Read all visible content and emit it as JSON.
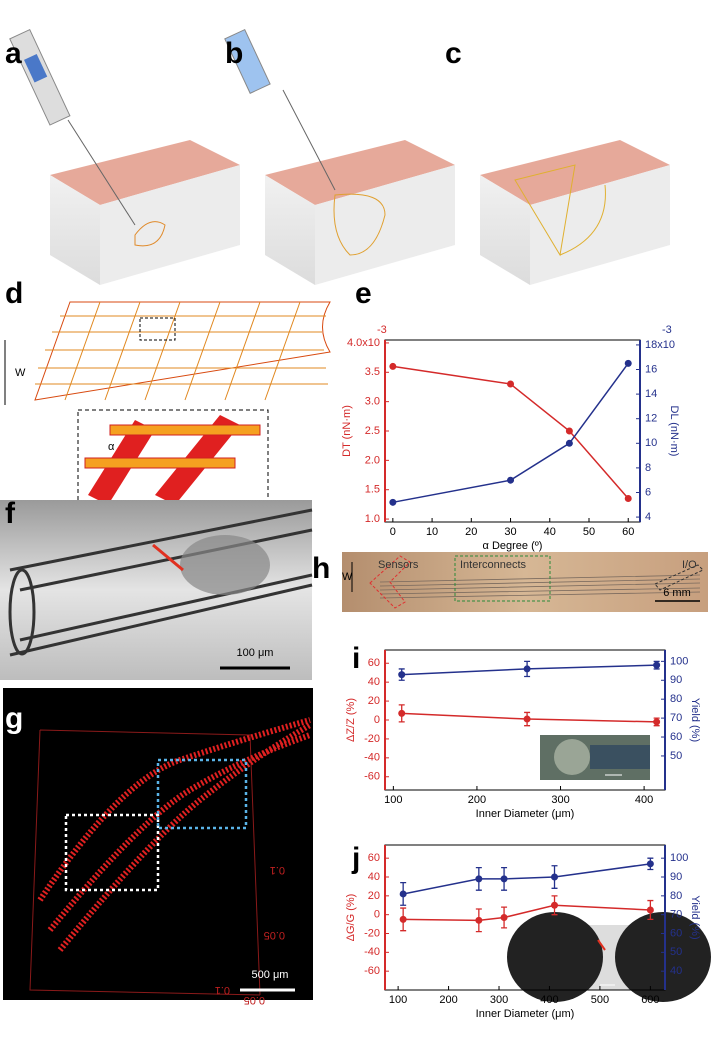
{
  "panel_labels": [
    "a",
    "b",
    "c",
    "d",
    "e",
    "f",
    "g",
    "h",
    "i",
    "j"
  ],
  "annotations": {
    "d_width": "W",
    "d_angle": "α",
    "f_scale": "100 μm",
    "g_scale": "500 μm",
    "g_axis_labels": [
      "0.1",
      "0.05",
      "0.1",
      "0.05"
    ],
    "h_width": "W",
    "h_sensors": "Sensors",
    "h_interconnects": "Interconnects",
    "h_io": "I/O",
    "h_scale": "6 mm"
  },
  "chart_data": [
    {
      "type": "line",
      "x_label": "α Degree (º)",
      "y_label": "DT (nN·m)",
      "y2_label": "DL (nN·m)",
      "y_exponent": "-3",
      "y2_exponent": "-3",
      "x": [
        0,
        30,
        45,
        60
      ],
      "xlim": [
        -2,
        63
      ],
      "xticks": [
        0,
        10,
        20,
        30,
        40,
        50,
        60
      ],
      "ylim": [
        0.95,
        4.05
      ],
      "yticks": [
        {
          "value": 1.0,
          "label": "1.0"
        },
        {
          "value": 1.5,
          "label": "1.5"
        },
        {
          "value": 2.0,
          "label": "2.0"
        },
        {
          "value": 2.5,
          "label": "2.5"
        },
        {
          "value": 3.0,
          "label": "3.0"
        },
        {
          "value": 3.5,
          "label": "3.5"
        },
        {
          "value": 4.0,
          "label": "4.0x10"
        }
      ],
      "y2lim": [
        3.6,
        18.4
      ],
      "y2ticks": [
        4,
        6,
        8,
        10,
        12,
        14,
        16,
        {
          "value": 18,
          "label": "18x10"
        }
      ],
      "series": [
        {
          "color": "#d42a2a",
          "values": [
            3.6,
            3.3,
            2.5,
            1.35
          ]
        },
        {
          "color": "#24318c",
          "axis": "y2",
          "values": [
            5.2,
            7.0,
            10.0,
            16.5
          ]
        }
      ]
    },
    {
      "type": "errorbar",
      "x_label": "Inner Diameter (μm)",
      "y_label": "ΔZ/Z (%)",
      "y2_label": "Yield (%)",
      "x": [
        110,
        260,
        415
      ],
      "xlim": [
        90,
        425
      ],
      "xticks": [
        100,
        200,
        300,
        400
      ],
      "ylim": [
        -74,
        74
      ],
      "yticks": [
        -60,
        -40,
        -20,
        0,
        20,
        40,
        60
      ],
      "y2lim": [
        32,
        106
      ],
      "y2ticks": [
        50,
        60,
        70,
        80,
        90,
        100
      ],
      "series": [
        {
          "color": "#d42a2a",
          "values": [
            7,
            1,
            -2
          ],
          "errors": [
            9,
            7,
            4
          ]
        },
        {
          "color": "#24318c",
          "axis": "y2",
          "values": [
            93,
            96,
            98
          ],
          "errors": [
            3,
            4,
            2
          ]
        }
      ]
    },
    {
      "type": "errorbar",
      "x_label": "Inner Diameter (μm)",
      "y_label": "ΔG/G (%)",
      "y2_label": "Yield (%)",
      "x": [
        110,
        260,
        310,
        410,
        600
      ],
      "xlim": [
        74,
        629
      ],
      "xticks": [
        100,
        200,
        300,
        400,
        500,
        600
      ],
      "ylim": [
        -80,
        74
      ],
      "yticks": [
        -60,
        -40,
        -20,
        0,
        20,
        40,
        60
      ],
      "y2lim": [
        30,
        107
      ],
      "y2ticks": [
        40,
        50,
        60,
        70,
        80,
        90,
        100
      ],
      "series": [
        {
          "color": "#d42a2a",
          "values": [
            -5,
            -6,
            -3,
            10,
            5
          ],
          "errors": [
            12,
            12,
            11,
            10,
            10
          ]
        },
        {
          "color": "#24318c",
          "axis": "y2",
          "values": [
            81,
            89,
            89,
            90,
            97
          ],
          "errors": [
            6,
            6,
            6,
            6,
            3
          ]
        }
      ]
    }
  ]
}
